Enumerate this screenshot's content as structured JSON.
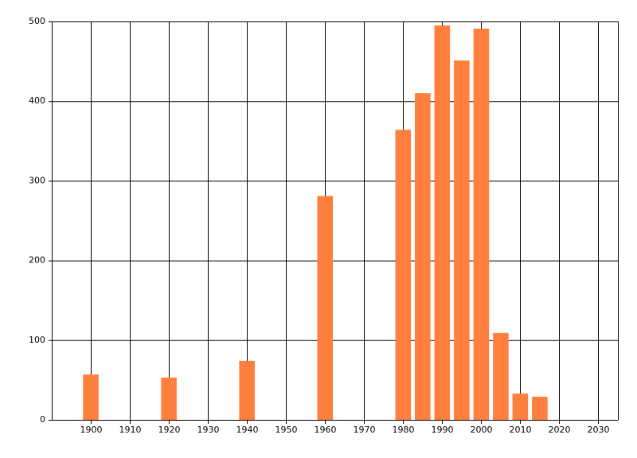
{
  "chart_data": {
    "type": "bar",
    "x": [
      1900,
      1920,
      1940,
      1960,
      1980,
      1985,
      1990,
      1995,
      2000,
      2005,
      2010,
      2015
    ],
    "values": [
      57,
      53,
      74,
      281,
      364,
      410,
      495,
      451,
      491,
      109,
      33,
      29
    ],
    "color": "#ff7f3f",
    "xlim": [
      1890,
      2035
    ],
    "xticks": [
      1900,
      1910,
      1920,
      1930,
      1940,
      1950,
      1960,
      1970,
      1980,
      1990,
      2000,
      2010,
      2020,
      2030
    ],
    "ylim": [
      0,
      500
    ],
    "yticks": [
      0,
      100,
      200,
      300,
      400,
      500
    ],
    "grid": true
  }
}
